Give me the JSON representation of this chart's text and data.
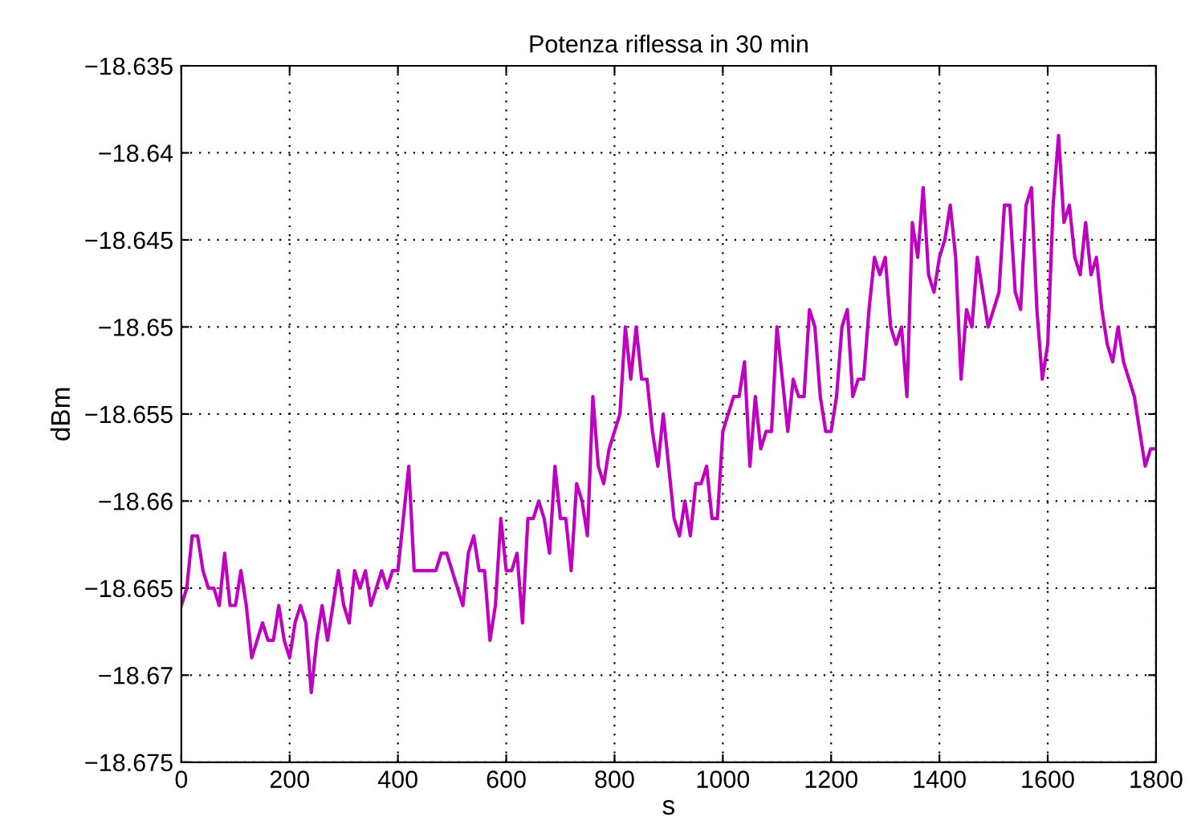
{
  "chart_data": {
    "type": "line",
    "title": "Potenza riflessa in 30 min",
    "xlabel": "s",
    "ylabel": "dBm",
    "x": [
      0,
      10,
      20,
      30,
      40,
      50,
      60,
      70,
      80,
      90,
      100,
      110,
      120,
      130,
      140,
      150,
      160,
      170,
      180,
      190,
      200,
      210,
      220,
      230,
      240,
      250,
      260,
      270,
      280,
      290,
      300,
      310,
      320,
      330,
      340,
      350,
      360,
      370,
      380,
      390,
      400,
      410,
      420,
      430,
      440,
      450,
      460,
      470,
      480,
      490,
      500,
      510,
      520,
      530,
      540,
      550,
      560,
      570,
      580,
      590,
      600,
      610,
      620,
      630,
      640,
      650,
      660,
      670,
      680,
      690,
      700,
      710,
      720,
      730,
      740,
      750,
      760,
      770,
      780,
      790,
      800,
      810,
      820,
      830,
      840,
      850,
      860,
      870,
      880,
      890,
      900,
      910,
      920,
      930,
      940,
      950,
      960,
      970,
      980,
      990,
      1000,
      1010,
      1020,
      1030,
      1040,
      1050,
      1060,
      1070,
      1080,
      1090,
      1100,
      1110,
      1120,
      1130,
      1140,
      1150,
      1160,
      1170,
      1180,
      1190,
      1200,
      1210,
      1220,
      1230,
      1240,
      1250,
      1260,
      1270,
      1280,
      1290,
      1300,
      1310,
      1320,
      1330,
      1340,
      1350,
      1360,
      1370,
      1380,
      1390,
      1400,
      1410,
      1420,
      1430,
      1440,
      1450,
      1460,
      1470,
      1480,
      1490,
      1500,
      1510,
      1520,
      1530,
      1540,
      1550,
      1560,
      1570,
      1580,
      1590,
      1600,
      1610,
      1620,
      1630,
      1640,
      1650,
      1660,
      1670,
      1680,
      1690,
      1700,
      1710,
      1720,
      1730,
      1740,
      1750,
      1760,
      1770,
      1780,
      1790,
      1800
    ],
    "series": [
      {
        "color": "#c000c0",
        "values": [
          -18.666,
          -18.665,
          -18.662,
          -18.662,
          -18.664,
          -18.665,
          -18.665,
          -18.666,
          -18.663,
          -18.666,
          -18.666,
          -18.664,
          -18.666,
          -18.669,
          -18.668,
          -18.667,
          -18.668,
          -18.668,
          -18.666,
          -18.668,
          -18.669,
          -18.667,
          -18.666,
          -18.667,
          -18.671,
          -18.668,
          -18.666,
          -18.668,
          -18.666,
          -18.664,
          -18.666,
          -18.667,
          -18.664,
          -18.665,
          -18.664,
          -18.666,
          -18.665,
          -18.664,
          -18.665,
          -18.664,
          -18.664,
          -18.661,
          -18.658,
          -18.664,
          -18.664,
          -18.664,
          -18.664,
          -18.664,
          -18.663,
          -18.663,
          -18.664,
          -18.665,
          -18.666,
          -18.663,
          -18.662,
          -18.664,
          -18.664,
          -18.668,
          -18.666,
          -18.661,
          -18.664,
          -18.664,
          -18.663,
          -18.667,
          -18.661,
          -18.661,
          -18.66,
          -18.661,
          -18.663,
          -18.658,
          -18.661,
          -18.661,
          -18.664,
          -18.659,
          -18.66,
          -18.662,
          -18.654,
          -18.658,
          -18.659,
          -18.657,
          -18.656,
          -18.655,
          -18.65,
          -18.653,
          -18.65,
          -18.653,
          -18.653,
          -18.656,
          -18.658,
          -18.655,
          -18.658,
          -18.661,
          -18.662,
          -18.66,
          -18.662,
          -18.659,
          -18.659,
          -18.658,
          -18.661,
          -18.661,
          -18.656,
          -18.655,
          -18.654,
          -18.654,
          -18.652,
          -18.658,
          -18.654,
          -18.657,
          -18.656,
          -18.656,
          -18.65,
          -18.653,
          -18.656,
          -18.653,
          -18.654,
          -18.654,
          -18.649,
          -18.65,
          -18.654,
          -18.656,
          -18.656,
          -18.654,
          -18.65,
          -18.649,
          -18.654,
          -18.653,
          -18.653,
          -18.649,
          -18.646,
          -18.647,
          -18.646,
          -18.65,
          -18.651,
          -18.65,
          -18.654,
          -18.644,
          -18.646,
          -18.642,
          -18.647,
          -18.648,
          -18.646,
          -18.645,
          -18.643,
          -18.646,
          -18.653,
          -18.649,
          -18.65,
          -18.646,
          -18.648,
          -18.65,
          -18.649,
          -18.648,
          -18.643,
          -18.643,
          -18.648,
          -18.649,
          -18.643,
          -18.642,
          -18.649,
          -18.653,
          -18.651,
          -18.643,
          -18.639,
          -18.644,
          -18.643,
          -18.646,
          -18.647,
          -18.644,
          -18.647,
          -18.646,
          -18.649,
          -18.651,
          -18.652,
          -18.65,
          -18.652,
          -18.653,
          -18.654,
          -18.656,
          -18.658,
          -18.657,
          -18.657
        ]
      }
    ],
    "xlim": [
      0,
      1800
    ],
    "xticks": [
      0,
      200,
      400,
      600,
      800,
      1000,
      1200,
      1400,
      1600,
      1800
    ],
    "ylim": [
      -18.675,
      -18.635
    ],
    "yticks": [
      {
        "value": -18.675,
        "label": "−18.675"
      },
      {
        "value": -18.67,
        "label": "−18.67"
      },
      {
        "value": -18.665,
        "label": "−18.665"
      },
      {
        "value": -18.66,
        "label": "−18.66"
      },
      {
        "value": -18.655,
        "label": "−18.655"
      },
      {
        "value": -18.65,
        "label": "−18.65"
      },
      {
        "value": -18.645,
        "label": "−18.645"
      },
      {
        "value": -18.64,
        "label": "−18.64"
      },
      {
        "value": -18.635,
        "label": "−18.635"
      }
    ],
    "grid": true,
    "line_style": "solid",
    "marker": "none"
  }
}
